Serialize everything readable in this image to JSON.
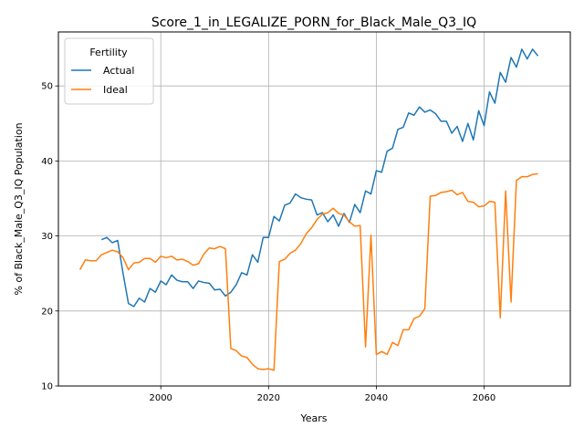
{
  "chart_data": {
    "type": "line",
    "title": "Score_1_in_LEGALIZE_PORN_for_Black_Male_Q3_IQ",
    "xlabel": "Years",
    "ylabel": "% of Black_Male_Q3_IQ Population",
    "xlim": [
      1981,
      2076
    ],
    "ylim": [
      10,
      57.2
    ],
    "xticks": [
      2000,
      2020,
      2040,
      2060
    ],
    "yticks": [
      10,
      20,
      30,
      40,
      50
    ],
    "grid": true,
    "legend": {
      "title": "Fertility",
      "placement": "top-left"
    },
    "series": [
      {
        "name": "Actual",
        "color": "#1f77b4",
        "x": [
          1989,
          1990,
          1991,
          1992,
          1993,
          1994,
          1995,
          1996,
          1997,
          1998,
          1999,
          2000,
          2001,
          2002,
          2003,
          2004,
          2005,
          2006,
          2007,
          2008,
          2009,
          2010,
          2011,
          2012,
          2013,
          2014,
          2015,
          2016,
          2017,
          2018,
          2019,
          2020,
          2021,
          2022,
          2023,
          2024,
          2025,
          2026,
          2027,
          2028,
          2029,
          2030,
          2031,
          2032,
          2033,
          2034,
          2035,
          2036,
          2037,
          2038,
          2039,
          2040,
          2041,
          2042,
          2043,
          2044,
          2045,
          2046,
          2047,
          2048,
          2049,
          2050,
          2051,
          2052,
          2053,
          2054,
          2055,
          2056,
          2057,
          2058,
          2059,
          2060,
          2061,
          2062,
          2063,
          2064,
          2065,
          2066,
          2067,
          2068,
          2069,
          2070
        ],
        "values": [
          29.5,
          29.8,
          29.1,
          29.4,
          25.0,
          21.0,
          20.6,
          21.7,
          21.2,
          23.0,
          22.5,
          24.0,
          23.5,
          24.8,
          24.1,
          23.9,
          23.9,
          23.0,
          24.0,
          23.8,
          23.7,
          22.8,
          22.9,
          22.0,
          22.5,
          23.5,
          25.1,
          24.8,
          27.5,
          26.5,
          29.8,
          29.8,
          32.6,
          32.0,
          34.1,
          34.4,
          35.6,
          35.1,
          34.9,
          34.8,
          32.8,
          33.1,
          31.9,
          32.8,
          31.3,
          33.0,
          31.8,
          34.2,
          33.1,
          36.0,
          35.6,
          38.7,
          38.5,
          41.3,
          41.7,
          44.2,
          44.5,
          46.4,
          46.1,
          47.2,
          46.5,
          46.8,
          46.3,
          45.3,
          45.3,
          43.7,
          44.6,
          42.6,
          45.0,
          42.8,
          46.7,
          44.7,
          49.2,
          47.7,
          51.8,
          50.5,
          53.8,
          52.5,
          54.9,
          53.6,
          54.9,
          54.0
        ]
      },
      {
        "name": "Ideal",
        "color": "#ff7f0e",
        "x": [
          1985,
          1986,
          1987,
          1988,
          1989,
          1990,
          1991,
          1992,
          1993,
          1994,
          1995,
          1996,
          1997,
          1998,
          1999,
          2000,
          2001,
          2002,
          2003,
          2004,
          2005,
          2006,
          2007,
          2008,
          2009,
          2010,
          2011,
          2012,
          2013,
          2014,
          2015,
          2016,
          2017,
          2018,
          2019,
          2020,
          2021,
          2022,
          2023,
          2024,
          2025,
          2026,
          2027,
          2028,
          2029,
          2030,
          2031,
          2032,
          2033,
          2034,
          2035,
          2036,
          2037,
          2038,
          2039,
          2040,
          2041,
          2042,
          2043,
          2044,
          2045,
          2046,
          2047,
          2048,
          2049,
          2050,
          2051,
          2052,
          2053,
          2054,
          2055,
          2056,
          2057,
          2058,
          2059,
          2060,
          2061,
          2062,
          2063,
          2064,
          2065,
          2066,
          2067,
          2068,
          2069,
          2070
        ],
        "values": [
          25.5,
          26.8,
          26.7,
          26.7,
          27.5,
          27.8,
          28.1,
          27.9,
          27.1,
          25.5,
          26.4,
          26.5,
          27.0,
          27.0,
          26.5,
          27.3,
          27.1,
          27.3,
          26.8,
          26.9,
          26.6,
          26.1,
          26.3,
          27.6,
          28.4,
          28.3,
          28.6,
          28.3,
          15.0,
          14.7,
          14.0,
          13.8,
          12.9,
          12.3,
          12.2,
          12.3,
          12.1,
          26.6,
          26.9,
          27.7,
          28.1,
          29.0,
          30.3,
          31.1,
          32.2,
          32.9,
          33.1,
          33.7,
          33.0,
          32.8,
          31.9,
          31.3,
          31.4,
          15.2,
          30.1,
          14.2,
          14.6,
          14.2,
          15.8,
          15.4,
          17.5,
          17.5,
          19.0,
          19.3,
          20.3,
          35.3,
          35.4,
          35.8,
          35.9,
          36.1,
          35.5,
          35.8,
          34.6,
          34.5,
          33.9,
          34.0,
          34.6,
          34.5,
          19.1,
          36.0,
          21.2,
          37.4,
          37.9,
          37.9,
          38.2,
          38.3
        ]
      }
    ]
  }
}
